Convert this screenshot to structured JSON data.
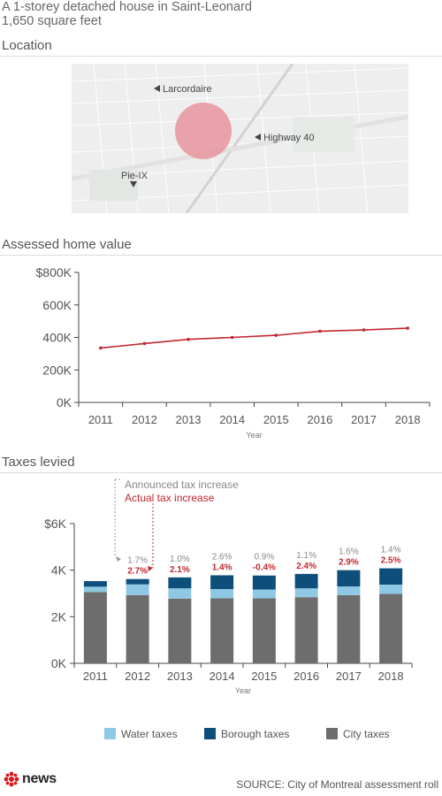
{
  "header": {
    "line1": "A 1-storey detached house in Saint-Leonard",
    "line2": "1,650 square feet"
  },
  "map": {
    "title": "Location",
    "labels": [
      "Larcordaire",
      "Highway 40",
      "Pie-IX"
    ],
    "marker_color": "#e8949e"
  },
  "footer": {
    "logo_text": "news",
    "source": "SOURCE: City of Montreal assessment roll"
  },
  "chart_data": [
    {
      "type": "line",
      "title": "Assessed home value",
      "x": [
        "2011",
        "2012",
        "2013",
        "2014",
        "2015",
        "2016",
        "2017",
        "2018"
      ],
      "series": [
        {
          "values": [
            335000,
            362000,
            388000,
            400000,
            413000,
            438000,
            446000,
            457000
          ],
          "color": "#c0282f"
        }
      ],
      "xlabel": "Year",
      "ylabel": "",
      "ylim": [
        0,
        800000
      ],
      "yticks": [
        0,
        200000,
        400000,
        600000,
        800000
      ],
      "ytick_labels": [
        "0K",
        "200K",
        "400K",
        "600K",
        "$800K"
      ],
      "grid": false
    },
    {
      "type": "bar",
      "stacked": true,
      "title": "Taxes levied",
      "categories": [
        "2011",
        "2012",
        "2013",
        "2014",
        "2015",
        "2016",
        "2017",
        "2018"
      ],
      "series": [
        {
          "name": "City taxes",
          "values": [
            3060,
            2930,
            2780,
            2790,
            2790,
            2840,
            2930,
            2980
          ],
          "color": "#6d6d6d"
        },
        {
          "name": "Water taxes",
          "values": [
            230,
            460,
            440,
            400,
            380,
            380,
            370,
            400
          ],
          "color": "#8fc8e4"
        },
        {
          "name": "Borough taxes",
          "values": [
            240,
            230,
            470,
            590,
            600,
            620,
            700,
            700
          ],
          "color": "#0d4f7a"
        }
      ],
      "xlabel": "Year",
      "ylim": [
        0,
        6000
      ],
      "yticks": [
        0,
        2000,
        4000,
        6000
      ],
      "ytick_labels": [
        "0K",
        "2K",
        "4K",
        "$6K"
      ],
      "announced_increase": [
        "",
        "1.7%",
        "1.0%",
        "2.6%",
        "0.9%",
        "1.1%",
        "1.6%",
        "1.4%"
      ],
      "actual_increase": [
        "",
        "2.7%",
        "2.1%",
        "1.4%",
        "-0.4%",
        "2.4%",
        "2.9%",
        "2.5%"
      ],
      "annotation_announced": "Announced tax increase",
      "annotation_actual": "Actual tax increase",
      "announced_color": "#888888",
      "actual_color": "#c0282f",
      "legend_position": "bottom",
      "legend_order": [
        "Water taxes",
        "Borough taxes",
        "City taxes"
      ]
    }
  ]
}
